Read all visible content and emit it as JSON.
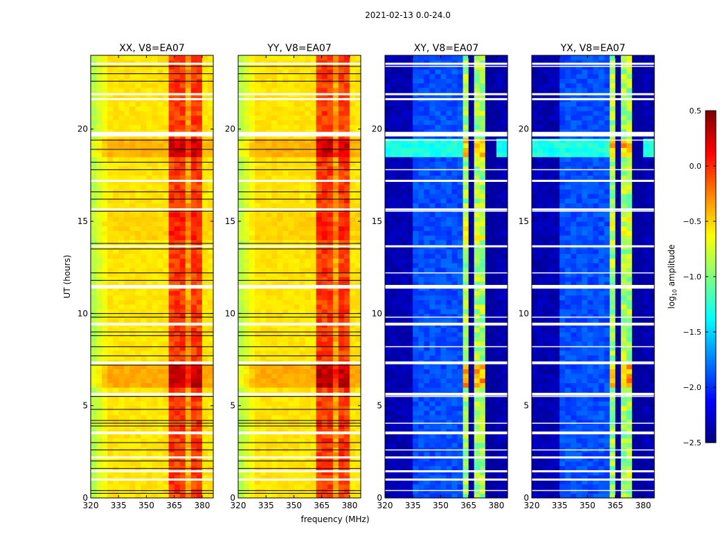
{
  "chart_data": {
    "type": "heatmap",
    "suptitle": "2021-02-13 0.0-24.0",
    "xlabel": "frequency (MHz)",
    "ylabel": "UT (hours)",
    "xlim": [
      320,
      386
    ],
    "ylim": [
      0,
      24
    ],
    "xticks": [
      320,
      335,
      350,
      365,
      380
    ],
    "yticks": [
      0,
      5,
      10,
      15,
      20
    ],
    "panels": [
      {
        "title": "XX, V8=EA07",
        "type": "parallel"
      },
      {
        "title": "YY, V8=EA07",
        "type": "parallel"
      },
      {
        "title": "XY, V8=EA07",
        "type": "cross"
      },
      {
        "title": "YX, V8=EA07",
        "type": "cross"
      }
    ],
    "flagged_hours": [
      [
        23.55,
        23.6
      ],
      [
        21.85,
        21.95
      ],
      [
        21.6,
        21.68
      ],
      [
        19.6,
        19.85
      ],
      [
        17.15,
        17.25
      ],
      [
        15.6,
        15.7
      ],
      [
        13.6,
        13.7
      ],
      [
        11.35,
        11.55
      ],
      [
        9.35,
        9.5
      ],
      [
        7.25,
        7.4
      ],
      [
        5.55,
        5.7
      ],
      [
        3.45,
        3.6
      ],
      [
        2.15,
        2.25
      ],
      [
        1.4,
        1.5
      ],
      [
        0.95,
        1.05
      ]
    ],
    "black_line_hours": [
      23.4,
      23.0,
      22.6,
      19.4,
      18.9,
      18.2,
      17.8,
      16.6,
      16.2,
      15.55,
      13.8,
      13.5,
      12.2,
      11.8,
      10.0,
      9.8,
      9.0,
      8.8,
      8.2,
      7.7,
      7.2,
      5.5,
      4.8,
      4.2,
      4.05,
      3.9,
      3.0,
      2.6,
      2.0,
      1.6,
      0.4,
      0.25
    ],
    "colorbar": {
      "label_prefix": "log",
      "label_sub": "10",
      "label_suffix": " amplitude",
      "range": [
        -2.5,
        0.5
      ],
      "ticks": [
        "0.5",
        "0.0",
        "−0.5",
        "−1.0",
        "−1.5",
        "−2.0",
        "−2.5"
      ],
      "tick_values": [
        0.5,
        0.0,
        -0.5,
        -1.0,
        -1.5,
        -2.0,
        -2.5
      ],
      "colormap": "jet"
    }
  }
}
